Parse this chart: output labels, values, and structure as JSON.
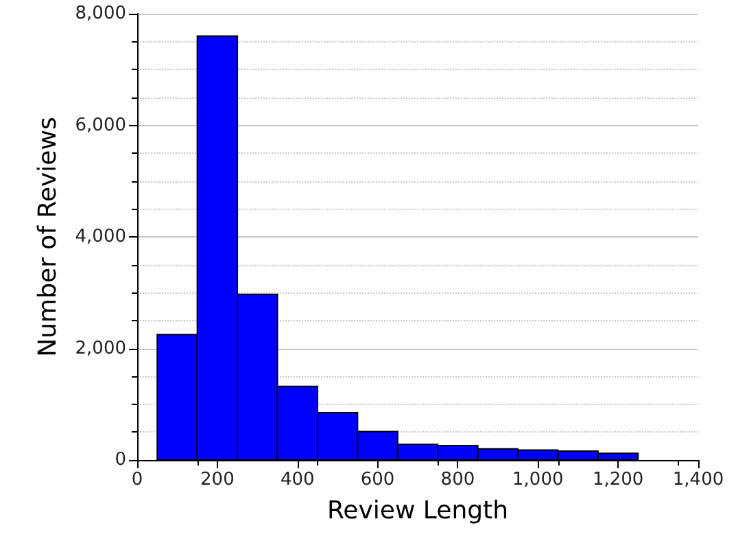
{
  "chart_data": {
    "type": "histogram",
    "xlabel": "Review Length",
    "ylabel": "Number of Reviews",
    "bins": [
      50,
      150,
      250,
      350,
      450,
      550,
      650,
      750,
      850,
      950,
      1050,
      1150,
      1250
    ],
    "values": [
      2250,
      7600,
      2970,
      1320,
      850,
      510,
      280,
      260,
      200,
      180,
      160,
      120
    ],
    "color": "#0000ff",
    "xlim": [
      0,
      1400
    ],
    "xticks": [
      {
        "value": 0,
        "label": "0"
      },
      {
        "value": 200,
        "label": "200"
      },
      {
        "value": 400,
        "label": "400"
      },
      {
        "value": 600,
        "label": "600"
      },
      {
        "value": 800,
        "label": "800"
      },
      {
        "value": 1000,
        "label": "1,000"
      },
      {
        "value": 1200,
        "label": "1,200"
      },
      {
        "value": 1400,
        "label": "1,400"
      }
    ],
    "ylim": [
      0,
      8000
    ],
    "yticks": [
      {
        "value": 0,
        "label": "0"
      },
      {
        "value": 2000,
        "label": "2,000"
      },
      {
        "value": 4000,
        "label": "4,000"
      },
      {
        "value": 6000,
        "label": "6,000"
      },
      {
        "value": 8000,
        "label": "8,000"
      }
    ],
    "grid": "y"
  }
}
